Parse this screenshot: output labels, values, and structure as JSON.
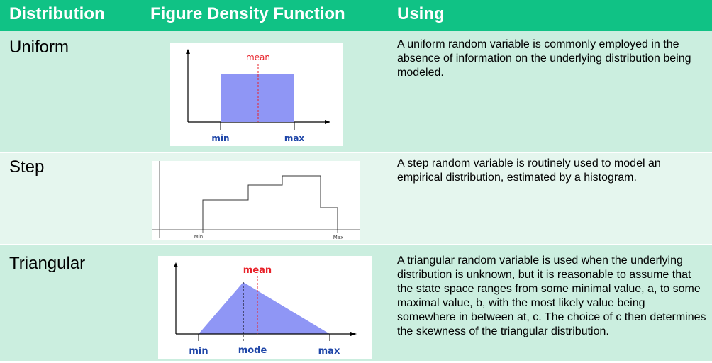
{
  "header": {
    "col1": "Distribution",
    "col2": "Figure Density Function",
    "col3": "Using"
  },
  "rows": [
    {
      "name": "Uniform",
      "figure": {
        "label_mean": "mean",
        "label_min": "min",
        "label_max": "max"
      },
      "description": "A uniform random variable is commonly employed  in the absence of information on the underlying distribution being modeled."
    },
    {
      "name": "Step",
      "figure": {
        "label_min": "Min",
        "label_max": "Max"
      },
      "description": "A step random variable is routinely used to model an empirical distribution, estimated by a histogram."
    },
    {
      "name": "Triangular",
      "figure": {
        "label_mean": "mean",
        "label_min": "min",
        "label_mode": "mode",
        "label_max": "max"
      },
      "description": "A triangular random variable is used when the underlying distribution is unknown, but it is reasonable to assume that the state space ranges from some minimal value, a, to some maximal value, b, with the most likely value being somewhere in between at, c. The choice of c then determines the skewness of the triangular distribution."
    }
  ],
  "colors": {
    "header_bg": "#10c285",
    "row_dark": "#cbeedf",
    "row_light": "#e5f6ee",
    "fill": "#8f96f5",
    "mean_line": "#e8222a",
    "axis_label": "#1f46a8"
  }
}
